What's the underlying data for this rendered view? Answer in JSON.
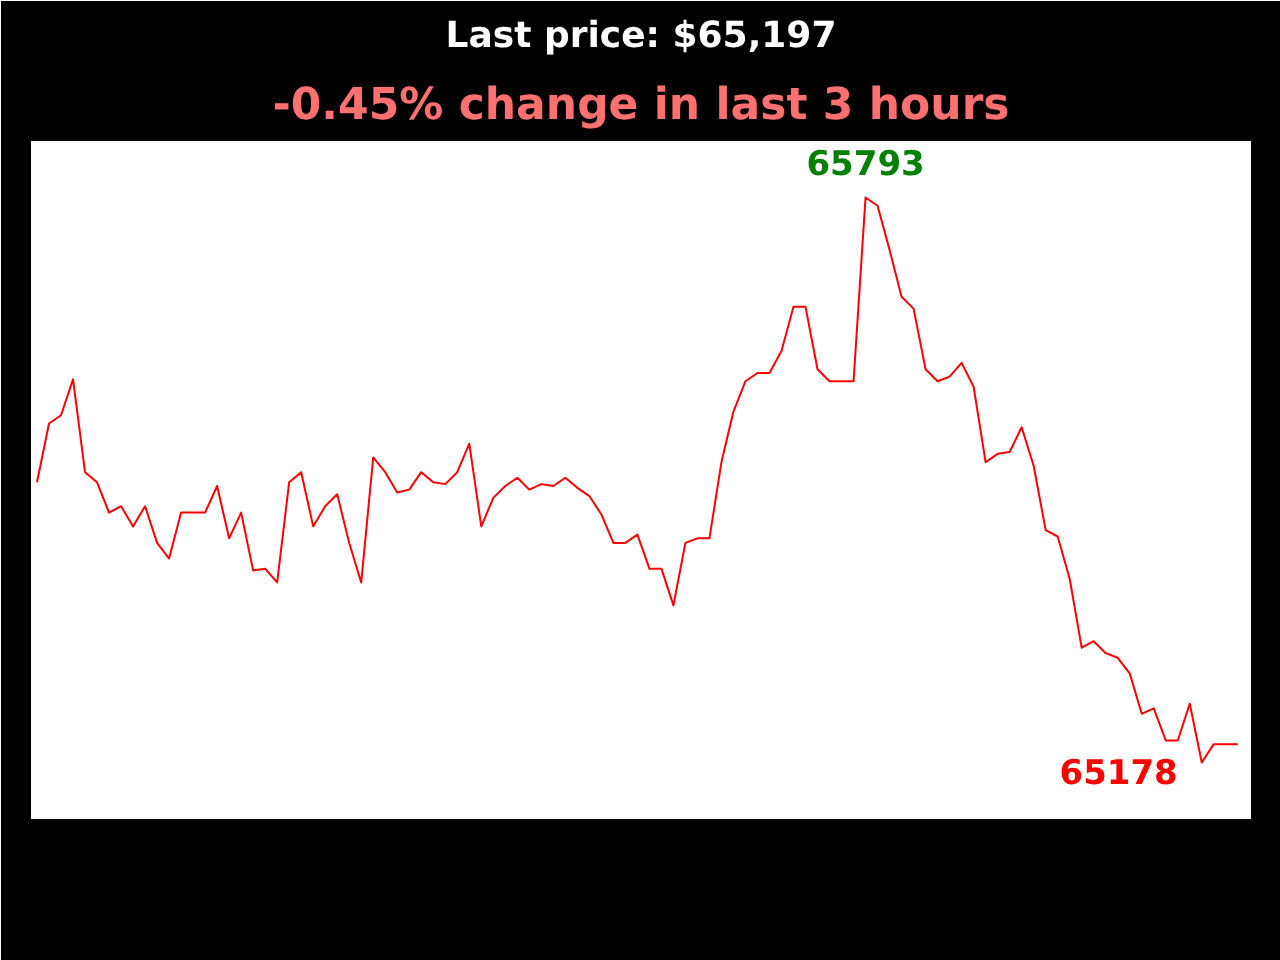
{
  "chart_data": {
    "type": "line",
    "title": "Last price: $65,197",
    "subtitle": "-0.45% change in last 3 hours",
    "categories": [
      null,
      null,
      null,
      null,
      null,
      null,
      null,
      null,
      null,
      null,
      null,
      null,
      null,
      null,
      null,
      null,
      null,
      null,
      null,
      null,
      null,
      null,
      null,
      null,
      null,
      null,
      null,
      null,
      null,
      null,
      null,
      null,
      null,
      null,
      null,
      null,
      null,
      null,
      null,
      null,
      null,
      null,
      null,
      null,
      null,
      null,
      null,
      null,
      null,
      null,
      null,
      null,
      null,
      null,
      null,
      null,
      null,
      null,
      null,
      null,
      null,
      null,
      null,
      null,
      null,
      null,
      null,
      null,
      null,
      null,
      null,
      null,
      null,
      null,
      null,
      null,
      null,
      null,
      null,
      null,
      null,
      null,
      null,
      null,
      null,
      null,
      null,
      null,
      null,
      null,
      null,
      null,
      null,
      null,
      null,
      null,
      null,
      null,
      null,
      null,
      null
    ],
    "series": [
      {
        "color": "#ff0000",
        "values": [
          65483,
          65547,
          65556,
          65595,
          65494,
          65483,
          65450,
          65457,
          65435,
          65457,
          65417,
          65400,
          65450,
          65450,
          65450,
          65479,
          65422,
          65450,
          65387,
          65389,
          65374,
          65483,
          65494,
          65435,
          65457,
          65470,
          65417,
          65374,
          65510,
          65494,
          65472,
          65475,
          65494,
          65483,
          65481,
          65494,
          65525,
          65435,
          65466,
          65479,
          65488,
          65475,
          65481,
          65479,
          65488,
          65477,
          65468,
          65448,
          65417,
          65417,
          65426,
          65389,
          65389,
          65349,
          65417,
          65422,
          65422,
          65505,
          65560,
          65593,
          65602,
          65602,
          65626,
          65674,
          65674,
          65606,
          65593,
          65593,
          65593,
          65793,
          65784,
          65736,
          65685,
          65672,
          65606,
          65593,
          65598,
          65613,
          65587,
          65505,
          65514,
          65516,
          65543,
          65501,
          65431,
          65424,
          65378,
          65303,
          65310,
          65297,
          65292,
          65275,
          65231,
          65237,
          65202,
          65202,
          65242,
          65178,
          65198,
          65198,
          65198
        ],
        "value_labels": [
          null,
          null,
          null,
          null,
          null,
          null,
          null,
          null,
          null,
          null,
          null,
          null,
          null,
          null,
          null,
          null,
          null,
          null,
          null,
          null,
          null,
          null,
          null,
          null,
          null,
          null,
          null,
          null,
          null,
          null,
          null,
          null,
          null,
          null,
          null,
          null,
          null,
          null,
          null,
          null,
          null,
          null,
          null,
          null,
          null,
          null,
          null,
          null,
          null,
          null,
          null,
          null,
          null,
          null,
          null,
          null,
          null,
          null,
          null,
          null,
          null,
          null,
          null,
          null,
          null,
          null,
          null,
          null,
          null,
          "65793",
          null,
          null,
          null,
          null,
          null,
          null,
          null,
          null,
          null,
          null,
          null,
          null,
          null,
          null,
          null,
          null,
          null,
          null,
          null,
          null,
          null,
          null,
          null,
          null,
          null,
          null,
          null,
          "65178",
          null,
          null,
          null
        ]
      }
    ],
    "tick_labels": false,
    "grid": false
  }
}
